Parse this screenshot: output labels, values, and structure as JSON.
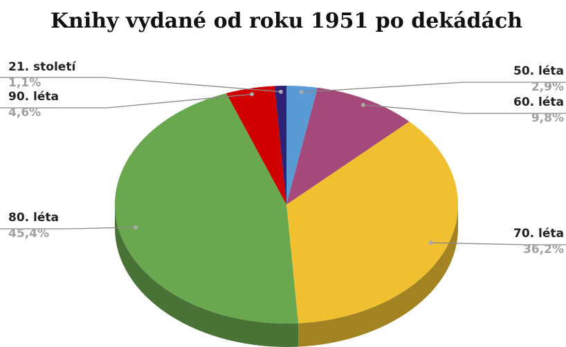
{
  "chart_data": {
    "type": "pie",
    "title": "Knihy vydané od roku 1951 po dekádách",
    "categories": [
      "50. léta",
      "60. léta",
      "70. léta",
      "80. léta",
      "90. léta",
      "21. století"
    ],
    "values": [
      2.9,
      9.8,
      36.2,
      45.4,
      4.6,
      1.1
    ],
    "value_labels": [
      "2,9%",
      "9,8%",
      "36,2%",
      "45,4%",
      "4,6%",
      "1,1%"
    ],
    "colors": [
      "#5b9bd5",
      "#a5497a",
      "#f0c030",
      "#6aa84f",
      "#d00000",
      "#2e2075"
    ]
  }
}
